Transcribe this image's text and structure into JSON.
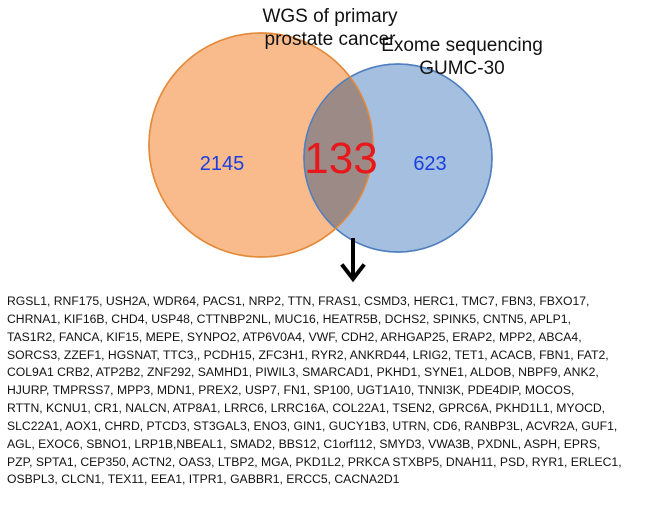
{
  "venn": {
    "set_a": {
      "label_lines": [
        "WGS of primary",
        "prostate cancer"
      ],
      "count": "2145",
      "fill": "#F9BB8C",
      "stroke": "#E48A3A"
    },
    "set_b": {
      "label_lines": [
        "Exome sequencing",
        "GUMC-30"
      ],
      "count": "623",
      "fill": "#A4BFDF",
      "stroke": "#4F7FBF"
    },
    "overlap": {
      "count": "133",
      "fill": "#9B8A85",
      "count_color": "#E8171B"
    },
    "count_color": "#1A3FE0",
    "arrow_icon": "down-arrow-icon"
  },
  "gene_lines": [
    "RGSL1, RNF175, USH2A, WDR64, PACS1, NRP2, TTN, FRAS1, CSMD3, HERC1, TMC7, FBN3, FBXO17,",
    "CHRNA1, KIF16B, CHD4, USP48, CTTNBP2NL, MUC16, HEATR5B, DCHS2, SPINK5, CNTN5, APLP1,",
    "TAS1R2, FANCA, KIF15, MEPE, SYNPO2, ATP6V0A4, VWF, CDH2, ARHGAP25, ERAP2, MPP2, ABCA4,",
    "SORCS3, ZZEF1, HGSNAT, TTC3,, PCDH15, ZFC3H1, RYR2, ANKRD44, LRIG2, TET1, ACACB, FBN1, FAT2,",
    "COL9A1  CRB2, ATP2B2, ZNF292, SAMHD1, PIWIL3, SMARCAD1, PKHD1, SYNE1, ALDOB, NBPF9, ANK2,",
    "HJURP, TMPRSS7, MPP3, MDN1, PREX2, USP7, FN1, SP100, UGT1A10, TNNI3K, PDE4DIP, MOCOS,",
    "RTTN, KCNU1, CR1, NALCN, ATP8A1, LRRC6, LRRC16A, COL22A1, TSEN2, GPRC6A, PKHD1L1, MYOCD,",
    "SLC22A1, AOX1, CHRD, PTCD3, ST3GAL3, ENO3, GIN1, GUCY1B3, UTRN, CD6, RANBP3L, ACVR2A, GUF1,",
    "AGL, EXOC6, SBNO1, LRP1B,NBEAL1, SMAD2, BBS12, C1orf112, SMYD3, VWA3B, PXDNL, ASPH, EPRS,",
    "PZP, SPTA1, CEP350, ACTN2, OAS3, LTBP2, MGA, PKD1L2, PRKCA STXBP5, DNAH11, PSD, RYR1, ERLEC1,",
    "OSBPL3, CLCN1, TEX11, EEA1, ITPR1, GABBR1, ERCC5, CACNA2D1"
  ]
}
